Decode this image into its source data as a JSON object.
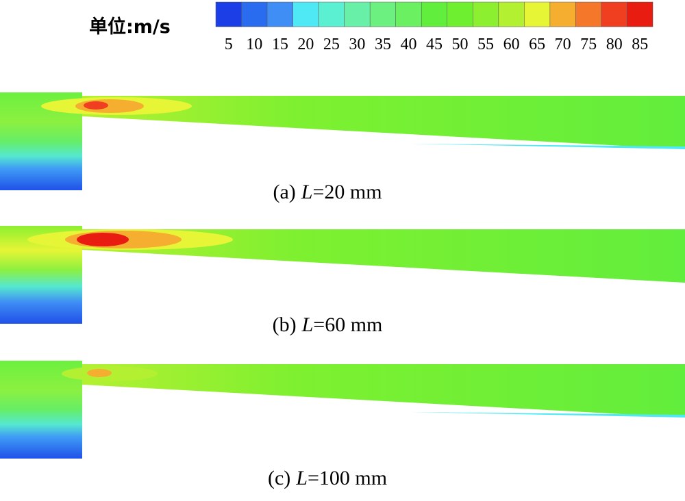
{
  "legend": {
    "title": "单位:m/s",
    "levels": [
      5,
      10,
      15,
      20,
      25,
      30,
      35,
      40,
      45,
      50,
      55,
      60,
      65,
      70,
      75,
      80,
      85
    ],
    "colors": [
      "#1c3ee6",
      "#2a6cf0",
      "#3f8ef5",
      "#4fe8f5",
      "#5cf0d2",
      "#68f0a8",
      "#6cf080",
      "#6af060",
      "#62ee3c",
      "#6ef030",
      "#8cf030",
      "#b4f032",
      "#e6f535",
      "#f5ae30",
      "#f5782a",
      "#f03e20",
      "#e81c10"
    ]
  },
  "panels": [
    {
      "prefix": "(a)",
      "variable": "L",
      "suffix": "=20 mm"
    },
    {
      "prefix": "(b)",
      "variable": "L",
      "suffix": "=60 mm"
    },
    {
      "prefix": "(c)",
      "variable": "L",
      "suffix": "=100 mm"
    }
  ]
}
